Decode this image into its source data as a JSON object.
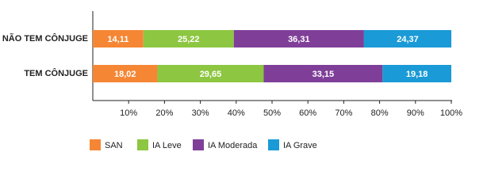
{
  "chart_data": {
    "type": "bar",
    "orientation": "horizontal",
    "stacked": true,
    "categories": [
      "NÃO TEM CÔNJUGE",
      "TEM CÔNJUGE"
    ],
    "series": [
      {
        "name": "SAN",
        "color": "#f58634",
        "values": [
          14.11,
          18.02
        ],
        "value_labels": [
          "14,11",
          "18,02"
        ]
      },
      {
        "name": "IA Leve",
        "color": "#8dc641",
        "values": [
          25.22,
          29.65
        ],
        "value_labels": [
          "25,22",
          "29,65"
        ]
      },
      {
        "name": "IA Moderada",
        "color": "#7f3f98",
        "values": [
          36.31,
          33.15
        ],
        "value_labels": [
          "36,31",
          "33,15"
        ]
      },
      {
        "name": "IA Grave",
        "color": "#1a9ad6",
        "values": [
          24.37,
          19.18
        ],
        "value_labels": [
          "24,37",
          "19,18"
        ]
      }
    ],
    "xlim": [
      0,
      100
    ],
    "xticks": [
      {
        "value": 10,
        "label": "10%"
      },
      {
        "value": 20,
        "label": "20%"
      },
      {
        "value": 30,
        "label": "30%"
      },
      {
        "value": 40,
        "label": "40%"
      },
      {
        "value": 50,
        "label": "50%"
      },
      {
        "value": 60,
        "label": "60%"
      },
      {
        "value": 70,
        "label": "70%"
      },
      {
        "value": 80,
        "label": "80%"
      },
      {
        "value": 90,
        "label": "90%"
      },
      {
        "value": 100,
        "label": "100%"
      }
    ]
  }
}
